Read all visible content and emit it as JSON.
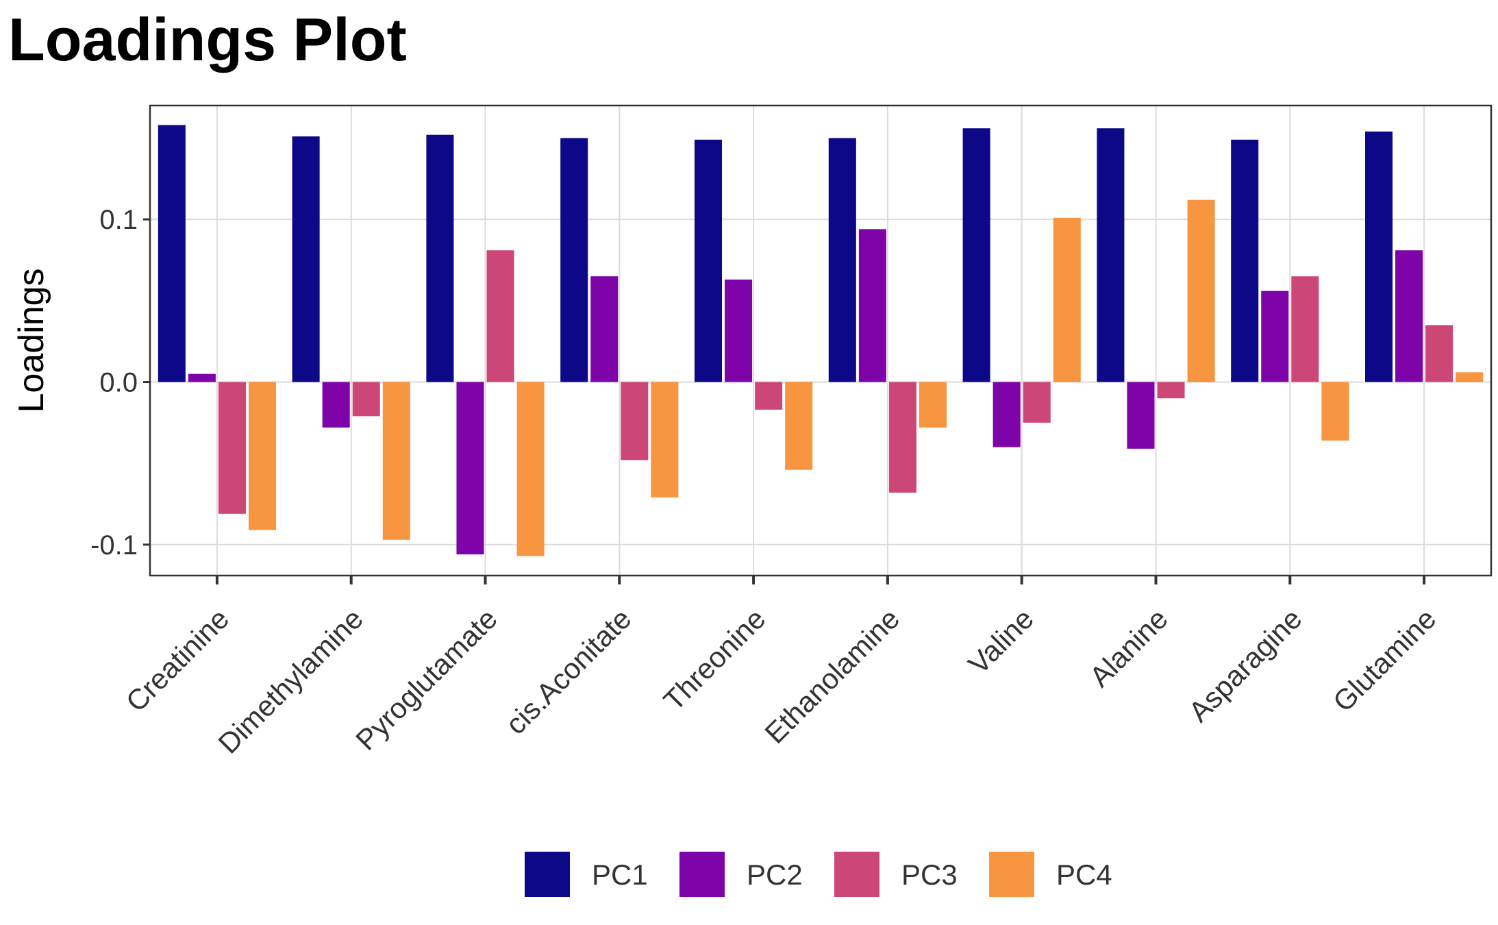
{
  "chart_data": {
    "type": "bar",
    "title": "Loadings Plot",
    "xlabel": "",
    "ylabel": "Loadings",
    "ylim": [
      -0.119,
      0.17
    ],
    "yticks": [
      -0.1,
      0.0,
      0.1
    ],
    "ytick_labels": [
      "-0.1",
      "0.0",
      "0.1"
    ],
    "categories": [
      "Creatinine",
      "Dimethylamine",
      "Pyroglutamate",
      "cis.Aconitate",
      "Threonine",
      "Ethanolamine",
      "Valine",
      "Alanine",
      "Asparagine",
      "Glutamine"
    ],
    "series": [
      {
        "name": "PC1",
        "color": "#0D0887",
        "values": [
          0.158,
          0.151,
          0.152,
          0.15,
          0.149,
          0.15,
          0.156,
          0.156,
          0.149,
          0.154
        ]
      },
      {
        "name": "PC2",
        "color": "#7E03A8",
        "values": [
          0.005,
          -0.028,
          -0.106,
          0.065,
          0.063,
          0.094,
          -0.04,
          -0.041,
          0.056,
          0.081
        ]
      },
      {
        "name": "PC3",
        "color": "#CC4778",
        "values": [
          -0.081,
          -0.021,
          0.081,
          -0.048,
          -0.017,
          -0.068,
          -0.025,
          -0.01,
          0.065,
          0.035
        ]
      },
      {
        "name": "PC4",
        "color": "#F89540",
        "values": [
          -0.091,
          -0.097,
          -0.107,
          -0.071,
          -0.054,
          -0.028,
          0.101,
          0.112,
          -0.036,
          0.006
        ]
      }
    ],
    "grid": true,
    "legend_position": "bottom"
  }
}
